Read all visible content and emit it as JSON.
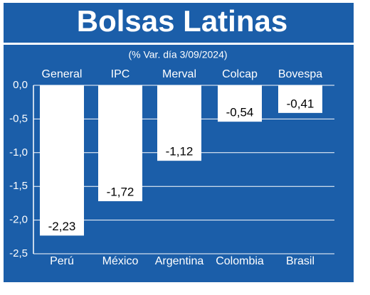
{
  "chart_data": {
    "type": "bar",
    "title": "Bolsas Latinas",
    "subtitle": "(% Var. día 3/09/2024)",
    "categories": [
      "Perú",
      "México",
      "Argentina",
      "Colombia",
      "Brasil"
    ],
    "index_labels": [
      "General",
      "IPC",
      "Merval",
      "Colcap",
      "Bovespa"
    ],
    "values": [
      -2.23,
      -1.72,
      -1.12,
      -0.54,
      -0.41
    ],
    "value_labels": [
      "-2,23",
      "-1,72",
      "-1,12",
      "-0,54",
      "-0,41"
    ],
    "color": "#ffffff",
    "ylim": [
      -2.5,
      0
    ],
    "yticks": [
      {
        "value": 0,
        "label": "0,0"
      },
      {
        "value": -0.5,
        "label": "-0,5"
      },
      {
        "value": -1,
        "label": "-1,0"
      },
      {
        "value": -1.5,
        "label": "-1,5"
      },
      {
        "value": -2,
        "label": "-2,0"
      },
      {
        "value": -2.5,
        "label": "-2,5"
      }
    ],
    "grid": true
  }
}
